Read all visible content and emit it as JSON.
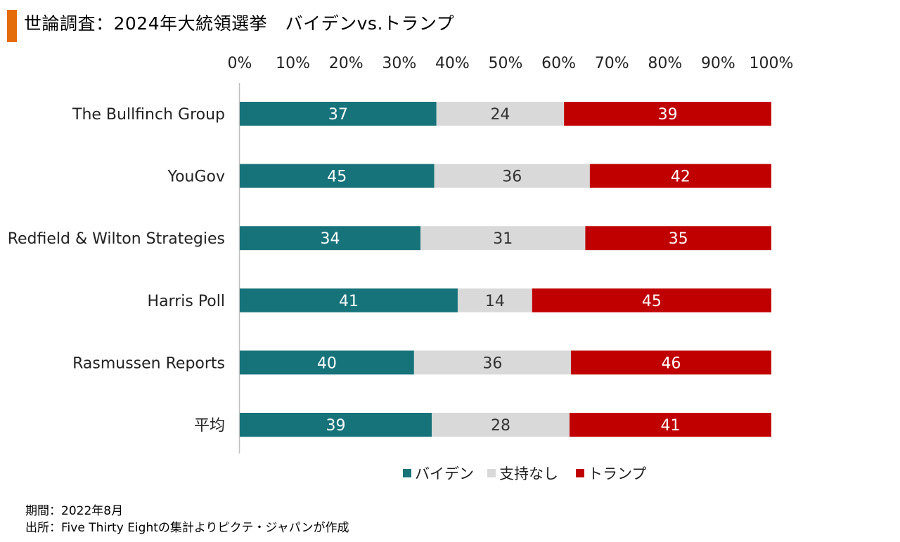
{
  "title": "世論調査：2024年大統領選挙　バイデンvs.トランプ",
  "colors": {
    "accent": "#E46C0A",
    "biden": "#17737A",
    "neutral": "#D9D9D9",
    "trump": "#C00000",
    "axis": "#BFBFBF"
  },
  "chart_data": {
    "type": "bar",
    "orientation": "horizontal",
    "stacked": "percent",
    "categories": [
      "The Bullfinch Group",
      "YouGov",
      "Redfield & Wilton Strategies",
      "Harris Poll",
      "Rasmussen Reports",
      "平均"
    ],
    "series": [
      {
        "name": "バイデン",
        "values": [
          37,
          45,
          34,
          41,
          40,
          39
        ]
      },
      {
        "name": "支持なし",
        "values": [
          24,
          36,
          31,
          14,
          36,
          28
        ]
      },
      {
        "name": "トランプ",
        "values": [
          39,
          42,
          35,
          45,
          46,
          41
        ]
      }
    ],
    "xticks": [
      "0%",
      "10%",
      "20%",
      "30%",
      "40%",
      "50%",
      "60%",
      "70%",
      "80%",
      "90%",
      "100%"
    ],
    "xlim": [
      0,
      100
    ],
    "axis_position": "top",
    "legend_position": "bottom",
    "grid": false
  },
  "footer": {
    "period": "期間：2022年8月",
    "source": "出所：Five Thirty Eightの集計よりピクテ・ジャパンが作成"
  }
}
